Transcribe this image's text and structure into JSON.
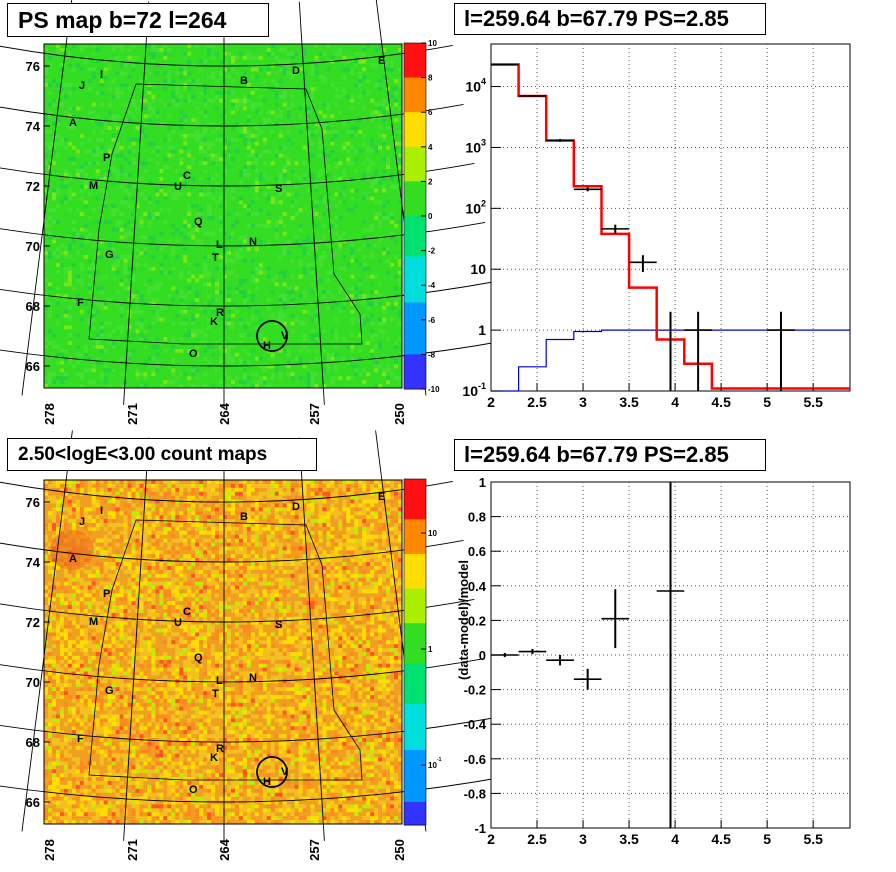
{
  "panels": {
    "tl_title": "PS map b=72 l=264",
    "tr_title": "l=259.64 b=67.79 PS=2.85",
    "bl_title": "2.50<logE<3.00 count maps",
    "br_title": "l=259.64 b=67.79 PS=2.85"
  },
  "colors": {
    "map_green": "#33dd22",
    "map_orange": "#f0a020",
    "data": "#000000",
    "model": "#ff0000",
    "background_model": "#0000cc"
  },
  "chart_data": [
    {
      "type": "heatmap",
      "title": "PS map b=72 l=264",
      "y_ticks": [
        "76",
        "74",
        "72",
        "70",
        "68",
        "66"
      ],
      "x_ticks": [
        "278",
        "271",
        "264",
        "257",
        "250"
      ],
      "colorbar": {
        "min": -10,
        "max": 10,
        "ticks": [
          "10",
          "8",
          "6",
          "4",
          "2",
          "0",
          "-2",
          "-4",
          "-6",
          "-8",
          "-10"
        ]
      },
      "labels": [
        "E",
        "D",
        "B",
        "I",
        "J",
        "A",
        "P",
        "C",
        "U",
        "M",
        "S",
        "Q",
        "L",
        "N",
        "T",
        "G",
        "F",
        "R",
        "K",
        "H",
        "V",
        "O"
      ]
    },
    {
      "type": "line",
      "title": "l=259.64 b=67.79 PS=2.85",
      "log_y": true,
      "ylim": [
        0.1,
        50000
      ],
      "xlim": [
        2,
        5.9
      ],
      "x_ticks": [
        "2",
        "2.5",
        "3",
        "3.5",
        "4",
        "4.5",
        "5",
        "5.5"
      ],
      "y_ticks": [
        "10^-1",
        "1",
        "10",
        "10^2",
        "10^3",
        "10^4"
      ],
      "series": [
        {
          "edges": [
            2,
            2.3,
            2.6,
            2.9,
            3.2,
            3.5,
            3.8,
            4.1,
            4.4,
            4.7,
            5.0,
            5.3,
            5.6,
            5.9
          ],
          "values": [
            23000,
            7000,
            1300,
            230,
            38,
            5,
            0.7,
            0.28,
            0.11,
            0.11,
            0.11,
            0.11,
            0.11
          ]
        },
        {
          "edges": [
            2,
            2.3,
            2.6,
            2.9,
            3.2,
            3.5,
            3.8,
            4.1,
            4.4,
            4.7,
            5.0,
            5.3,
            5.6,
            5.9
          ],
          "values": [
            0.1,
            0.25,
            0.7,
            0.95,
            1,
            1,
            1,
            1,
            1,
            1,
            1,
            1,
            1
          ]
        },
        {
          "points": [
            {
              "x": 2.15,
              "y": 23000,
              "xerr": 0.15,
              "ylo": 23000,
              "yhi": 23000
            },
            {
              "x": 2.45,
              "y": 7000,
              "xerr": 0.15,
              "ylo": 7000,
              "yhi": 7000
            },
            {
              "x": 2.75,
              "y": 1300,
              "xerr": 0.15,
              "ylo": 1240,
              "yhi": 1380
            },
            {
              "x": 3.05,
              "y": 205,
              "xerr": 0.15,
              "ylo": 190,
              "yhi": 220
            },
            {
              "x": 3.35,
              "y": 46,
              "xerr": 0.15,
              "ylo": 39,
              "yhi": 54
            },
            {
              "x": 3.65,
              "y": 13,
              "xerr": 0.15,
              "ylo": 9,
              "yhi": 17
            },
            {
              "x": 3.95,
              "y": 1,
              "xerr": 0,
              "ylo": 0.1,
              "yhi": 2
            },
            {
              "x": 4.25,
              "y": 1,
              "xerr": 0.15,
              "ylo": 0.1,
              "yhi": 2
            },
            {
              "x": 5.15,
              "y": 1,
              "xerr": 0.15,
              "ylo": 0.1,
              "yhi": 2
            }
          ]
        }
      ]
    },
    {
      "type": "heatmap",
      "title": "2.50<logE<3.00 count maps",
      "y_ticks": [
        "76",
        "74",
        "72",
        "70",
        "68",
        "66"
      ],
      "x_ticks": [
        "278",
        "271",
        "264",
        "257",
        "250"
      ],
      "colorbar": {
        "ticks": [
          "10",
          "1",
          "10^-1"
        ]
      },
      "labels": [
        "E",
        "D",
        "B",
        "I",
        "J",
        "A",
        "P",
        "C",
        "U",
        "M",
        "S",
        "Q",
        "L",
        "N",
        "T",
        "G",
        "F",
        "R",
        "K",
        "H",
        "V",
        "O"
      ]
    },
    {
      "type": "scatter",
      "title": "l=259.64 b=67.79 PS=2.85",
      "ylabel": "(data-model)/model",
      "xlim": [
        2,
        5.9
      ],
      "ylim": [
        -1,
        1
      ],
      "x_ticks": [
        "2",
        "2.5",
        "3",
        "3.5",
        "4",
        "4.5",
        "5",
        "5.5"
      ],
      "y_ticks": [
        "1",
        "0.8",
        "0.6",
        "0.4",
        "0.2",
        "0",
        "-0.2",
        "-0.4",
        "-0.6",
        "-0.8",
        "-1"
      ],
      "points": [
        {
          "x": 2.15,
          "y": 0.0,
          "xerr": 0.15,
          "yerr": 0.012
        },
        {
          "x": 2.45,
          "y": 0.02,
          "xerr": 0.15,
          "yerr": 0.015
        },
        {
          "x": 2.75,
          "y": -0.03,
          "xerr": 0.15,
          "yerr": 0.03
        },
        {
          "x": 3.05,
          "y": -0.14,
          "xerr": 0.15,
          "yerr": 0.06
        },
        {
          "x": 3.35,
          "y": 0.21,
          "xerr": 0.15,
          "yerr": 0.17
        },
        {
          "x": 3.95,
          "y": 0.37,
          "xerr": 0.15,
          "yerr": 1.6
        }
      ]
    }
  ]
}
